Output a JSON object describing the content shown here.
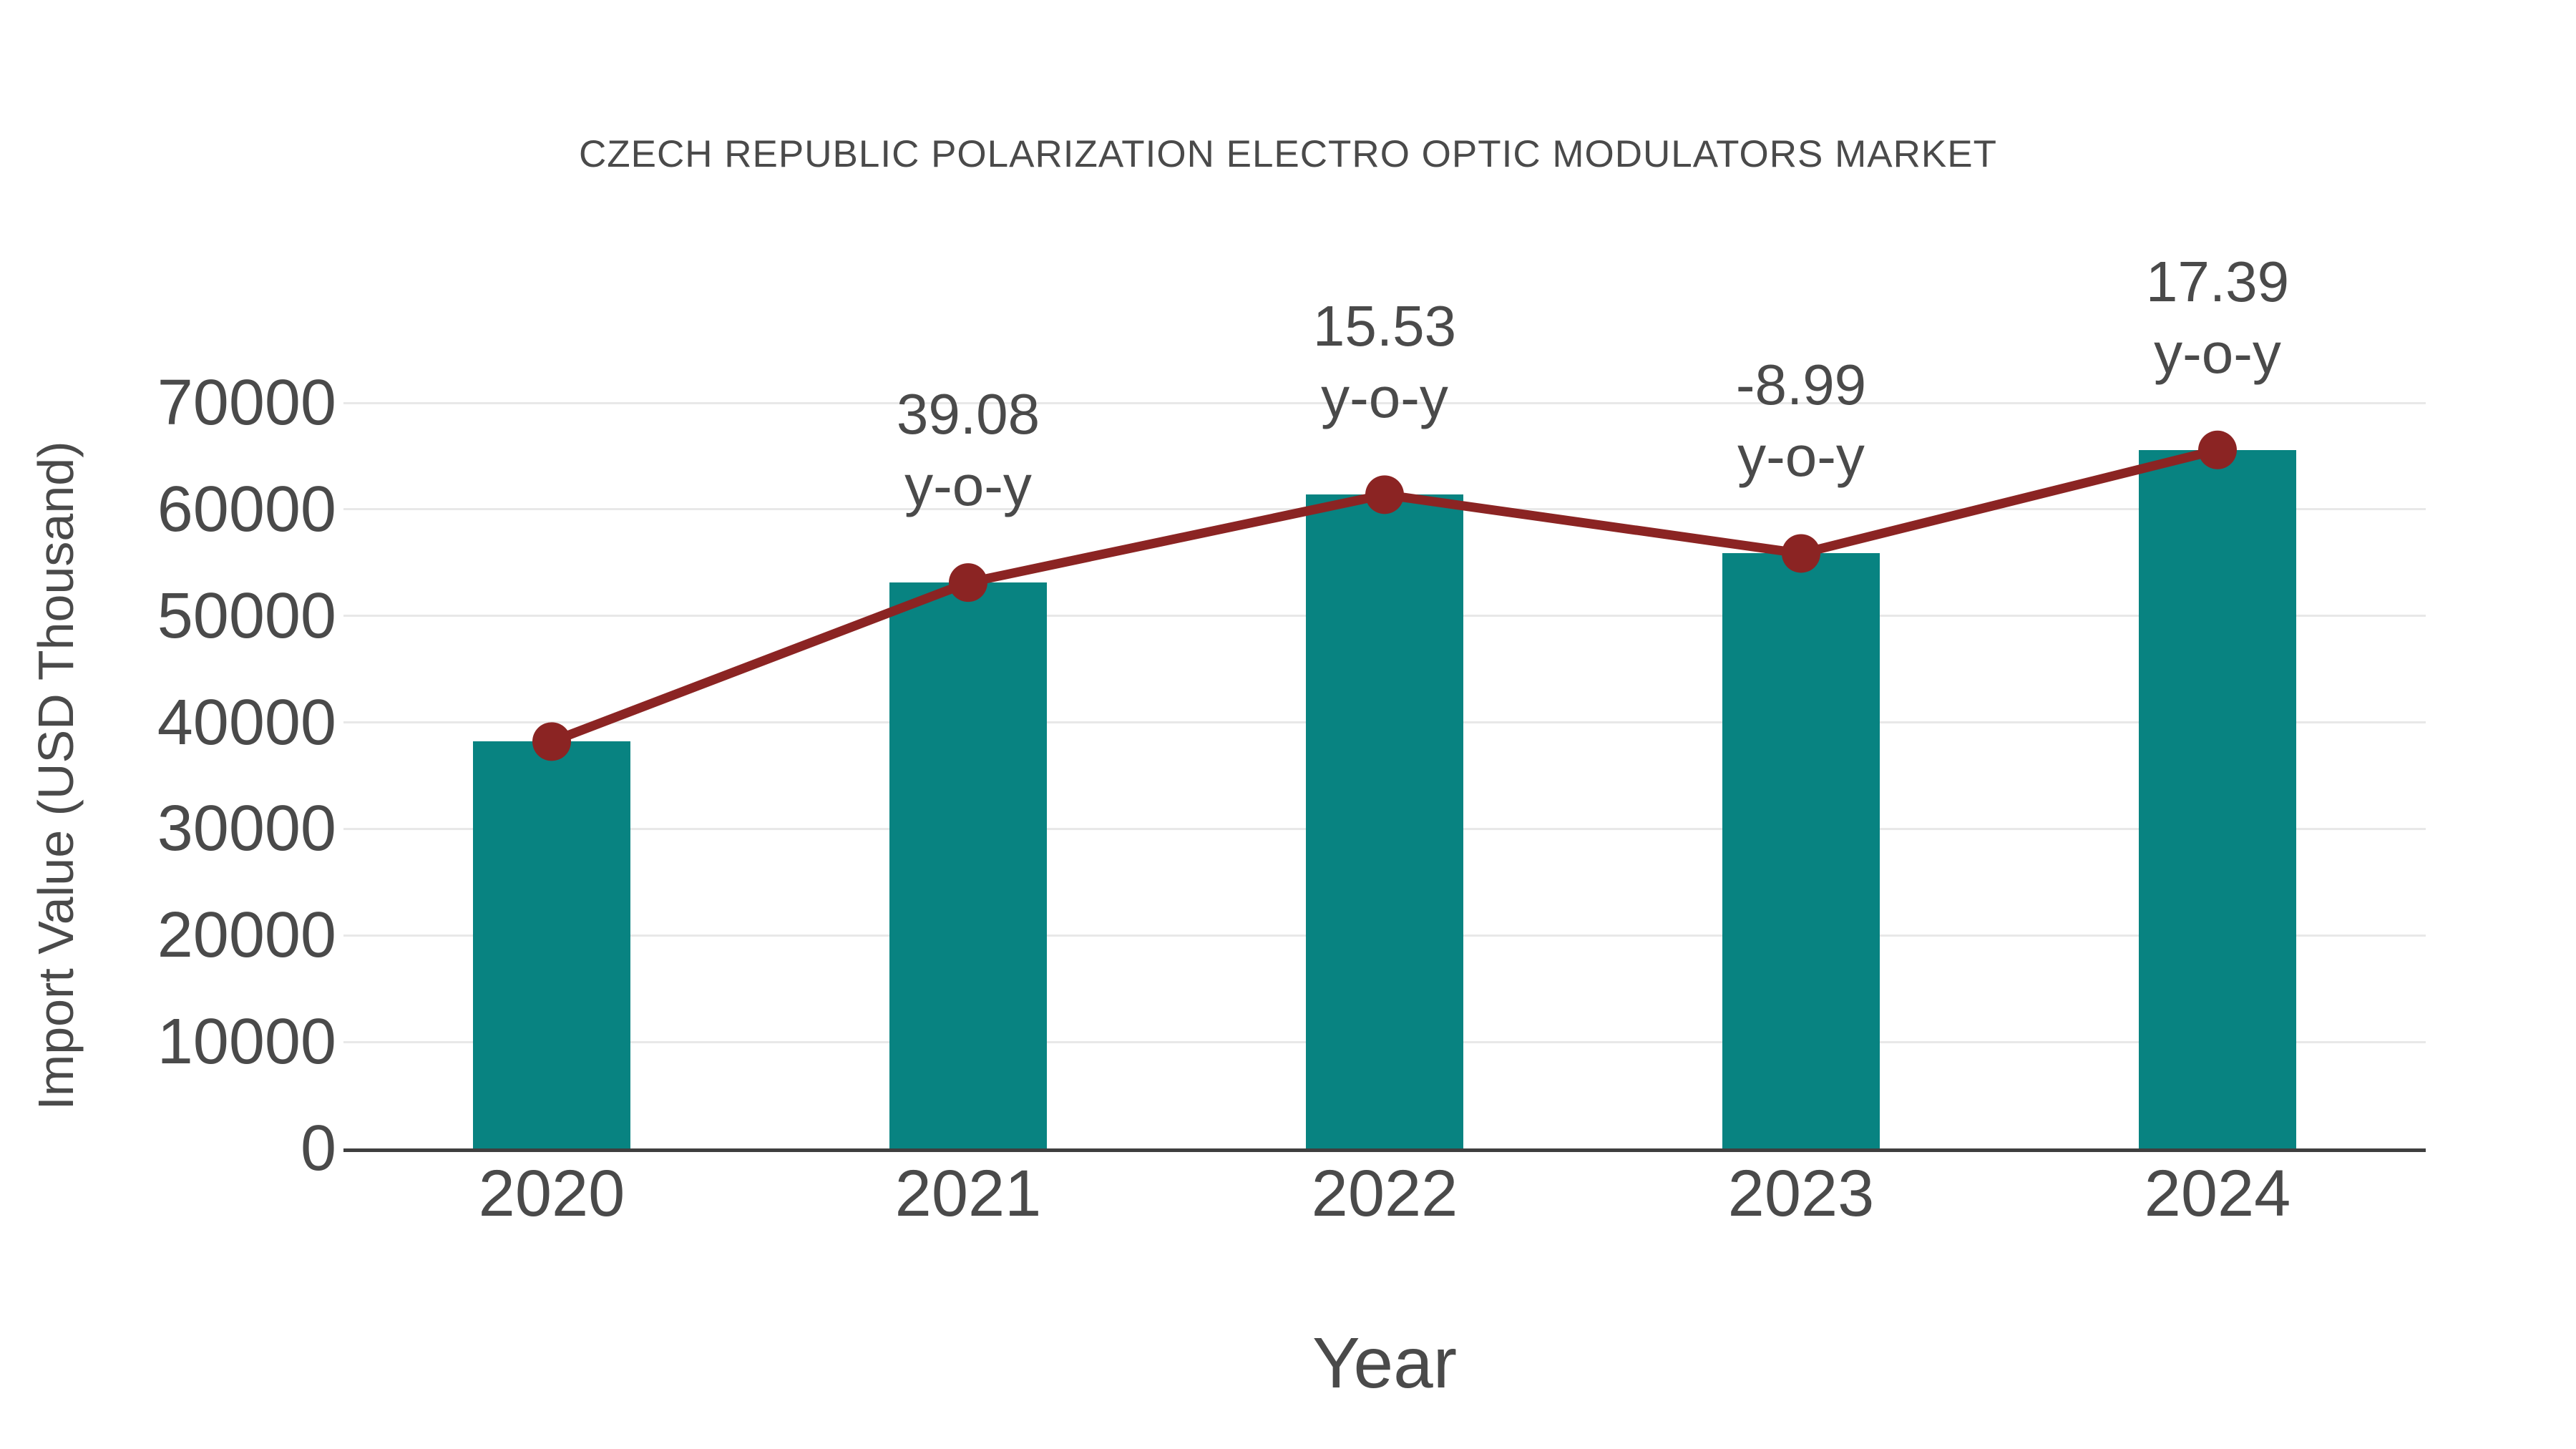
{
  "title": "CZECH REPUBLIC POLARIZATION ELECTRO OPTIC MODULATORS MARKET",
  "colors": {
    "bar": "#088381",
    "line": "#8b2423",
    "marker": "#8b2423",
    "grid": "#e8e8e8",
    "axis": "#3f3f3f",
    "text": "#4a4a4a"
  },
  "chart_data": {
    "type": "bar",
    "title": "CZECH REPUBLIC POLARIZATION ELECTRO OPTIC MODULATORS MARKET",
    "xlabel": "Year",
    "ylabel": "Import Value (USD Thousand)",
    "categories": [
      "2020",
      "2021",
      "2022",
      "2023",
      "2024"
    ],
    "series": [
      {
        "name": "Import Value (USD Thousand)",
        "type": "bar",
        "values": [
          38200,
          53130,
          61380,
          55860,
          65580
        ]
      },
      {
        "name": "Import Value trend line with markers",
        "type": "line",
        "values": [
          38200,
          53130,
          61380,
          55860,
          65580
        ]
      }
    ],
    "yoy_percent": [
      null,
      39.08,
      15.53,
      -8.99,
      17.39
    ],
    "annotations": [
      {
        "category": "2021",
        "lines": [
          "39.08",
          "y-o-y"
        ]
      },
      {
        "category": "2022",
        "lines": [
          "15.53",
          "y-o-y"
        ]
      },
      {
        "category": "2023",
        "lines": [
          "-8.99",
          "y-o-y"
        ]
      },
      {
        "category": "2024",
        "lines": [
          "17.39",
          "y-o-y"
        ]
      }
    ],
    "ylim": [
      0,
      70000
    ],
    "yticks": [
      0,
      10000,
      20000,
      30000,
      40000,
      50000,
      60000,
      70000
    ],
    "grid": true,
    "legend": "none"
  }
}
